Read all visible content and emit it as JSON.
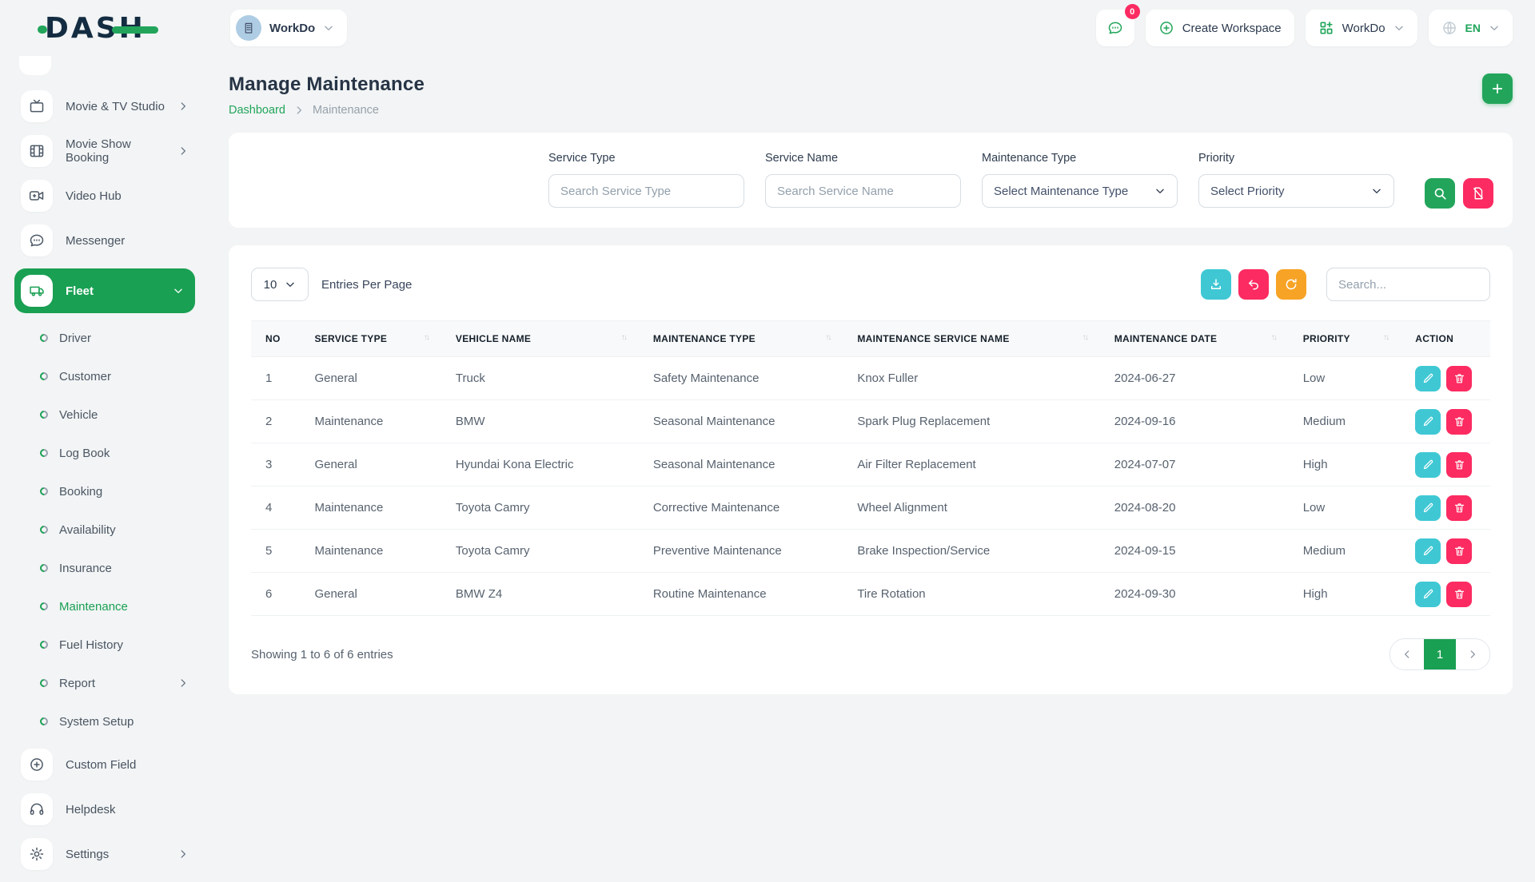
{
  "brand": {
    "logo_text": "DASH"
  },
  "header": {
    "workspace_selector": {
      "label": "WorkDo"
    },
    "messages": {
      "badge_count": "0"
    },
    "create_workspace": {
      "label": "Create Workspace"
    },
    "app_menu": {
      "label": "WorkDo"
    },
    "language": {
      "code": "EN"
    }
  },
  "sidebar": {
    "items": [
      {
        "kind": "main",
        "icon": "tv",
        "label": "Movie & TV Studio",
        "chevron": "right",
        "active": false
      },
      {
        "kind": "main",
        "icon": "film",
        "label": "Movie Show Booking",
        "chevron": "right",
        "active": false
      },
      {
        "kind": "main",
        "icon": "video",
        "label": "Video Hub",
        "chevron": "",
        "active": false
      },
      {
        "kind": "main",
        "icon": "chat",
        "label": "Messenger",
        "chevron": "",
        "active": false
      },
      {
        "kind": "main",
        "icon": "van",
        "label": "Fleet",
        "chevron": "down",
        "active": true
      },
      {
        "kind": "sub",
        "label": "Driver",
        "chevron": "",
        "active": false
      },
      {
        "kind": "sub",
        "label": "Customer",
        "chevron": "",
        "active": false
      },
      {
        "kind": "sub",
        "label": "Vehicle",
        "chevron": "",
        "active": false
      },
      {
        "kind": "sub",
        "label": "Log Book",
        "chevron": "",
        "active": false
      },
      {
        "kind": "sub",
        "label": "Booking",
        "chevron": "",
        "active": false
      },
      {
        "kind": "sub",
        "label": "Availability",
        "chevron": "",
        "active": false
      },
      {
        "kind": "sub",
        "label": "Insurance",
        "chevron": "",
        "active": false
      },
      {
        "kind": "sub",
        "label": "Maintenance",
        "chevron": "",
        "active": true
      },
      {
        "kind": "sub",
        "label": "Fuel History",
        "chevron": "",
        "active": false
      },
      {
        "kind": "sub",
        "label": "Report",
        "chevron": "right",
        "active": false
      },
      {
        "kind": "sub",
        "label": "System Setup",
        "chevron": "",
        "active": false
      },
      {
        "kind": "main",
        "icon": "plus-circle",
        "label": "Custom Field",
        "chevron": "",
        "active": false
      },
      {
        "kind": "main",
        "icon": "headphones",
        "label": "Helpdesk",
        "chevron": "",
        "active": false
      },
      {
        "kind": "main",
        "icon": "gear",
        "label": "Settings",
        "chevron": "right",
        "active": false
      }
    ]
  },
  "page": {
    "title": "Manage Maintenance",
    "breadcrumb": {
      "root": "Dashboard",
      "current": "Maintenance"
    }
  },
  "filters": {
    "fields": [
      {
        "label": "Service Type",
        "placeholder": "Search Service Type"
      },
      {
        "label": "Service Name",
        "placeholder": "Search Service Name"
      },
      {
        "label": "Maintenance Type",
        "value": "Select Maintenance Type"
      },
      {
        "label": "Priority",
        "value": "Select Priority"
      }
    ]
  },
  "list_controls": {
    "entries_per_page": "10",
    "entries_label": "Entries Per Page",
    "search_placeholder": "Search..."
  },
  "table": {
    "columns": [
      "NO",
      "SERVICE TYPE",
      "VEHICLE NAME",
      "MAINTENANCE TYPE",
      "MAINTENANCE SERVICE NAME",
      "MAINTENANCE DATE",
      "PRIORITY",
      "ACTION"
    ],
    "sortable": [
      false,
      true,
      true,
      true,
      true,
      true,
      true,
      false
    ],
    "rows": [
      {
        "no": "1",
        "service_type": "General",
        "vehicle_name": "Truck",
        "maintenance_type": "Safety Maintenance",
        "maintenance_service_name": "Knox Fuller",
        "maintenance_date": "2024-06-27",
        "priority": "Low"
      },
      {
        "no": "2",
        "service_type": "Maintenance",
        "vehicle_name": "BMW",
        "maintenance_type": "Seasonal Maintenance",
        "maintenance_service_name": "Spark Plug Replacement",
        "maintenance_date": "2024-09-16",
        "priority": "Medium"
      },
      {
        "no": "3",
        "service_type": "General",
        "vehicle_name": "Hyundai Kona Electric",
        "maintenance_type": "Seasonal Maintenance",
        "maintenance_service_name": "Air Filter Replacement",
        "maintenance_date": "2024-07-07",
        "priority": "High"
      },
      {
        "no": "4",
        "service_type": "Maintenance",
        "vehicle_name": "Toyota Camry",
        "maintenance_type": "Corrective Maintenance",
        "maintenance_service_name": "Wheel Alignment",
        "maintenance_date": "2024-08-20",
        "priority": "Low"
      },
      {
        "no": "5",
        "service_type": "Maintenance",
        "vehicle_name": "Toyota Camry",
        "maintenance_type": "Preventive Maintenance",
        "maintenance_service_name": "Brake Inspection/Service",
        "maintenance_date": "2024-09-15",
        "priority": "Medium"
      },
      {
        "no": "6",
        "service_type": "General",
        "vehicle_name": "BMW Z4",
        "maintenance_type": "Routine Maintenance",
        "maintenance_service_name": "Tire Rotation",
        "maintenance_date": "2024-09-30",
        "priority": "High"
      }
    ]
  },
  "pagination": {
    "summary": "Showing 1 to 6 of 6 entries",
    "current_page": "1"
  },
  "colors": {
    "primary_green": "#1aa053",
    "accent_green": "#22a55b",
    "pink": "#fc2b61",
    "cyan": "#3fc8d4",
    "orange": "#f7a325",
    "avatar_blue": "#aecde4"
  }
}
